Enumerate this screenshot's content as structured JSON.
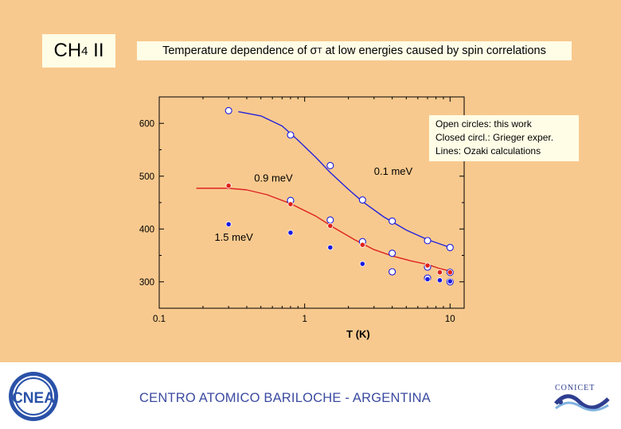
{
  "slide": {
    "title_main": "CH",
    "title_sub": "4",
    "title_suffix": " II",
    "subtitle_pre": "Temperature dependence of σ",
    "subtitle_sub": "T",
    "subtitle_post": " at low energies caused by spin correlations",
    "legend_lines": [
      "Open circles: this work",
      "Closed circl.: Grieger exper.",
      "Lines: Ozaki calculations"
    ],
    "footer_text": "CENTRO ATOMICO BARILOCHE - ARGENTINA",
    "logo_left_text": "CNEA",
    "logo_right_text": "CONICET"
  },
  "chart_data": {
    "type": "scatter",
    "title": "",
    "xlabel": "T (K)",
    "ylabel": "",
    "xscale": "log",
    "xlim": [
      0.1,
      12.5
    ],
    "ylim": [
      250,
      650
    ],
    "xticks": [
      0.1,
      1,
      10
    ],
    "xtick_labels": [
      "0.1",
      "1",
      "10"
    ],
    "yticks": [
      300,
      400,
      500,
      600
    ],
    "ytick_labels": [
      "300",
      "400",
      "500",
      "600"
    ],
    "annotations": [
      {
        "text": "0.1 meV",
        "x": 3.0,
        "y": 503
      },
      {
        "text": "0.9 meV",
        "x": 0.45,
        "y": 490
      },
      {
        "text": "1.5 meV",
        "x": 0.24,
        "y": 378
      }
    ],
    "series": [
      {
        "kind": "open",
        "color": "#1a1adf",
        "group": "0.1 meV",
        "x": [
          0.3,
          0.8,
          1.5,
          2.5,
          4.0,
          7.0,
          10.0
        ],
        "y": [
          624,
          578,
          520,
          455,
          415,
          378,
          365
        ]
      },
      {
        "kind": "open",
        "color": "#1a1adf",
        "group": "0.9 meV",
        "x": [
          0.8,
          1.5,
          2.5,
          4.0,
          7.0,
          10.0
        ],
        "y": [
          454,
          417,
          376,
          354,
          328,
          318
        ]
      },
      {
        "kind": "open",
        "color": "#1a1adf",
        "group": "1.5 meV",
        "x": [
          4.0,
          7.0,
          10.0
        ],
        "y": [
          319,
          307,
          300
        ]
      },
      {
        "kind": "closed",
        "color": "#e0201a",
        "group": "0.9 meV",
        "x": [
          0.3,
          0.8,
          1.5,
          2.5,
          7.0,
          8.5,
          10.0
        ],
        "y": [
          482,
          447,
          406,
          370,
          331,
          318,
          318
        ]
      },
      {
        "kind": "closed",
        "color": "#1a1adf",
        "group": "1.5 meV",
        "x": [
          0.3,
          0.8,
          1.5,
          2.5,
          7.0,
          8.5,
          10.0
        ],
        "y": [
          409,
          393,
          365,
          334,
          305,
          303,
          301
        ]
      },
      {
        "kind": "line",
        "color": "#2222dd",
        "group": "0.1 meV",
        "x": [
          0.35,
          0.5,
          0.7,
          0.9,
          1.2,
          1.5,
          2.0,
          2.5,
          3.5,
          5.0,
          7.0,
          10.0
        ],
        "y": [
          622,
          614,
          595,
          568,
          535,
          507,
          475,
          452,
          423,
          398,
          380,
          365
        ]
      },
      {
        "kind": "line",
        "color": "#dd2222",
        "group": "0.9 meV",
        "x": [
          0.18,
          0.3,
          0.4,
          0.55,
          0.8,
          1.2,
          1.6,
          2.2,
          3.0,
          4.0,
          5.5,
          7.0,
          8.5,
          10.5
        ],
        "y": [
          477,
          477,
          474,
          465,
          448,
          424,
          402,
          380,
          361,
          349,
          339,
          333,
          325,
          319
        ]
      }
    ]
  }
}
